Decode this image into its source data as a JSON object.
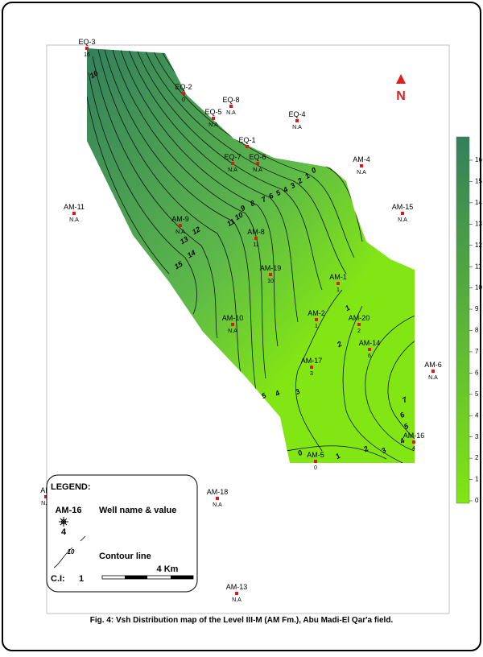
{
  "map": {
    "caption": "Fig. 4: Vsh  Distribution map of the Level III-M (AM Fm.), Abu Madi-El Qar'a field.",
    "north": "N",
    "wells": [
      {
        "name": "EQ-3",
        "value": 16
      },
      {
        "name": "EQ-2",
        "value": 0
      },
      {
        "name": "EQ-8",
        "value": "N.A"
      },
      {
        "name": "EQ-5",
        "value": "N.A"
      },
      {
        "name": "EQ-4",
        "value": "N.A"
      },
      {
        "name": "EQ-1"
      },
      {
        "name": "EQ-7",
        "value": "N.A"
      },
      {
        "name": "EQ-6",
        "value": "N.A"
      },
      {
        "name": "AM-4",
        "value": "N.A"
      },
      {
        "name": "AM-11",
        "value": "N.A"
      },
      {
        "name": "AM-15",
        "value": "N.A"
      },
      {
        "name": "AM-9",
        "value": "N.A"
      },
      {
        "name": "AM-8",
        "value": 11
      },
      {
        "name": "AM-19",
        "value": 10
      },
      {
        "name": "AM-1",
        "value": 1
      },
      {
        "name": "AM-2",
        "value": 1
      },
      {
        "name": "AM-20",
        "value": 2
      },
      {
        "name": "AM-10",
        "value": "N.A"
      },
      {
        "name": "AM-17",
        "value": 3
      },
      {
        "name": "AM-14",
        "value": 6
      },
      {
        "name": "AM-6",
        "value": "N.A"
      },
      {
        "name": "AM-16",
        "value": 4
      },
      {
        "name": "AM-5",
        "value": 0
      },
      {
        "name": "AM-18",
        "value": "N.A"
      },
      {
        "name": "AM-13",
        "value": "N.A"
      },
      {
        "name": "AM",
        "value": "N.A"
      }
    ],
    "contour_labels": [
      16,
      0,
      1,
      2,
      3,
      4,
      5,
      6,
      7,
      8,
      9,
      10,
      11,
      12,
      13,
      14,
      15,
      1,
      2,
      3,
      4,
      5,
      7,
      6,
      5,
      4,
      3,
      2,
      1,
      0
    ],
    "colorbar": {
      "ticks": [
        0,
        1,
        2,
        3,
        4,
        5,
        6,
        7,
        8,
        9,
        10,
        11,
        12,
        13,
        14,
        15,
        16
      ],
      "low_color": "#82e614",
      "high_color": "#33805c"
    },
    "legend": {
      "title": "LEGEND:",
      "well_example": "AM-16",
      "well_example_value": 4,
      "well_text": "Well name & value",
      "contour_example": 10,
      "contour_text": "Contour line",
      "ci_label": "C.I:",
      "ci_value": 1,
      "scale": "4 Km"
    }
  }
}
